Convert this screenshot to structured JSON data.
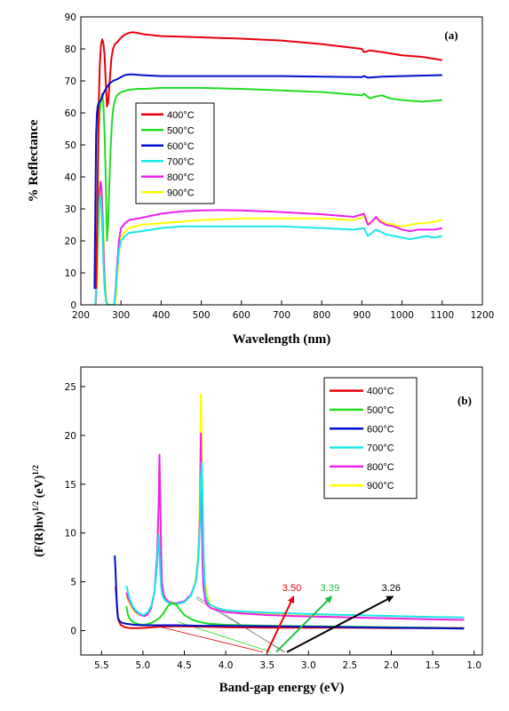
{
  "chart_data": [
    {
      "type": "line",
      "panel_label": "(a)",
      "xlabel": "Wavelength (nm)",
      "ylabel": "% Reflectance",
      "xlim": [
        200,
        1200
      ],
      "ylim": [
        0,
        90
      ],
      "x_ticks": [
        "200",
        "300",
        "400",
        "500",
        "600",
        "700",
        "800",
        "900",
        "1000",
        "1100",
        "1200"
      ],
      "y_ticks": [
        "0",
        "10",
        "20",
        "30",
        "40",
        "50",
        "60",
        "70",
        "80",
        "90"
      ],
      "legend_position": "center-left",
      "series": [
        {
          "name": "400°C",
          "color": "#e8000b",
          "x": [
            238,
            241,
            244,
            247,
            250,
            253,
            256,
            259,
            262,
            265,
            268,
            272,
            276,
            280,
            285,
            290,
            300,
            310,
            320,
            330,
            340,
            360,
            400,
            450,
            500,
            600,
            700,
            800,
            900,
            905,
            920,
            950,
            1000,
            1050,
            1100
          ],
          "y": [
            5,
            30,
            60,
            74,
            81,
            83,
            82,
            78,
            70,
            62,
            63,
            70,
            77,
            80,
            81.5,
            82,
            83.5,
            84.5,
            85,
            85.2,
            85,
            84.5,
            84,
            83.8,
            83.6,
            83.2,
            82.6,
            81.5,
            80,
            79,
            79.5,
            79,
            78,
            77.5,
            76.5
          ]
        },
        {
          "name": "500°C",
          "color": "#22dd22",
          "x": [
            238,
            241,
            244,
            247,
            250,
            253,
            256,
            259,
            262,
            265,
            268,
            271,
            274,
            277,
            280,
            285,
            290,
            300,
            320,
            340,
            360,
            400,
            500,
            600,
            700,
            800,
            900,
            905,
            920,
            930,
            950,
            970,
            1000,
            1050,
            1100
          ],
          "y": [
            5,
            25,
            50,
            60,
            64,
            66,
            63,
            54,
            40,
            20,
            25,
            38,
            48,
            56,
            61,
            64,
            65.5,
            66.5,
            67.2,
            67.5,
            67.5,
            67.8,
            67.8,
            67.5,
            67,
            66.5,
            65.5,
            66,
            64.5,
            65,
            65.5,
            64.5,
            64,
            63.5,
            64
          ]
        },
        {
          "name": "600°C",
          "color": "#0010cc",
          "x": [
            234,
            236,
            238,
            240,
            242,
            244,
            247,
            250,
            253,
            256,
            260,
            265,
            270,
            280,
            290,
            300,
            310,
            320,
            330,
            350,
            400,
            500,
            600,
            700,
            800,
            900,
            905,
            915,
            950,
            1000,
            1100
          ],
          "y": [
            5,
            30,
            53,
            60,
            62,
            63,
            63.5,
            64,
            65,
            66,
            67,
            68,
            69,
            70,
            70.5,
            71.2,
            71.8,
            72,
            72,
            71.8,
            71.5,
            71.5,
            71.5,
            71.5,
            71.3,
            71.2,
            71.5,
            71,
            71.3,
            71.5,
            71.8
          ]
        },
        {
          "name": "700°C",
          "color": "#18e8e8",
          "x": [
            236,
            239,
            242,
            245,
            248,
            250,
            253,
            256,
            259,
            262,
            265,
            270,
            275,
            280,
            283,
            286,
            290,
            295,
            300,
            310,
            320,
            350,
            400,
            450,
            500,
            600,
            700,
            800,
            880,
            905,
            915,
            925,
            935,
            945,
            960,
            980,
            1000,
            1020,
            1040,
            1060,
            1080,
            1100
          ],
          "y": [
            0,
            8,
            20,
            30,
            34,
            33,
            26,
            14,
            5,
            2,
            0,
            0,
            0,
            0,
            0,
            3,
            10,
            17,
            20,
            21.5,
            22.5,
            23,
            24,
            24.5,
            24.5,
            24.5,
            24.5,
            24,
            23.5,
            24,
            21.5,
            22.5,
            23.5,
            23,
            22,
            21.5,
            21,
            20.5,
            21,
            21.5,
            21,
            21.5
          ]
        },
        {
          "name": "800°C",
          "color": "#ee22ee",
          "x": [
            237,
            240,
            243,
            246,
            249,
            251,
            254,
            257,
            260,
            263,
            266,
            270,
            275,
            280,
            283,
            286,
            290,
            295,
            300,
            310,
            320,
            350,
            400,
            450,
            500,
            550,
            600,
            700,
            800,
            880,
            905,
            915,
            925,
            935,
            945,
            960,
            980,
            1000,
            1020,
            1040,
            1060,
            1080,
            1100
          ],
          "y": [
            0,
            10,
            25,
            35,
            38.5,
            37,
            28,
            15,
            5,
            1,
            0,
            0,
            0,
            0,
            0,
            4,
            12,
            20,
            24,
            25.5,
            26.5,
            27.2,
            28.5,
            29.2,
            29.5,
            29.6,
            29.5,
            29,
            28.3,
            27.5,
            28.5,
            25,
            26,
            27.5,
            26,
            25,
            24.5,
            23.5,
            23,
            23.5,
            23.5,
            23.5,
            24
          ]
        },
        {
          "name": "900°C",
          "color": "#ffff00",
          "x": [
            238,
            241,
            244,
            247,
            250,
            253,
            256,
            259,
            262,
            265,
            270,
            275,
            280,
            285,
            288,
            291,
            295,
            300,
            310,
            320,
            350,
            400,
            500,
            600,
            700,
            800,
            880,
            905,
            915,
            925,
            935,
            945,
            960,
            980,
            1000,
            1020,
            1040,
            1060,
            1080,
            1100
          ],
          "y": [
            0,
            8,
            22,
            32,
            36,
            34,
            24,
            12,
            4,
            1,
            0,
            0,
            0,
            0,
            3,
            9,
            16,
            21,
            23,
            24,
            25,
            25.5,
            26.5,
            27,
            27,
            27,
            26.5,
            27.5,
            25.5,
            26,
            27,
            26.5,
            25.5,
            25,
            24.5,
            25,
            25.5,
            25.5,
            26,
            26.5
          ]
        }
      ]
    },
    {
      "type": "line",
      "panel_label": "(b)",
      "xlabel": "Band-gap energy (eV)",
      "ylabel": "(F(R)hν)1/2 (eV)1/2",
      "ylabel_parts": {
        "base": "(F(R)hν)",
        "exp1": "1/2",
        "mid": " (eV)",
        "exp2": "1/2"
      },
      "xlim": [
        5.75,
        0.9
      ],
      "ylim": [
        -2.5,
        27
      ],
      "x_reversed": true,
      "x_ticks": [
        "5.5",
        "5.0",
        "4.5",
        "4.0",
        "3.5",
        "3.0",
        "2.5",
        "2.0",
        "1.5",
        "1.0"
      ],
      "y_ticks": [
        "0",
        "5",
        "10",
        "15",
        "20",
        "25"
      ],
      "legend_position": "top-right",
      "series": [
        {
          "name": "400°C",
          "color": "#e8000b",
          "x": [
            5.33,
            5.3,
            5.27,
            5.22,
            5.15,
            5.05,
            4.95,
            4.8,
            4.6,
            4.3,
            4.0,
            3.5,
            3.0,
            2.5,
            2.0,
            1.5,
            1.12
          ],
          "y": [
            4.5,
            1.2,
            0.6,
            0.35,
            0.25,
            0.25,
            0.3,
            0.4,
            0.45,
            0.4,
            0.35,
            0.3,
            0.3,
            0.3,
            0.25,
            0.25,
            0.25
          ]
        },
        {
          "name": "500°C",
          "color": "#22dd22",
          "x": [
            5.2,
            5.18,
            5.15,
            5.1,
            5.05,
            5.0,
            4.95,
            4.9,
            4.85,
            4.8,
            4.75,
            4.7,
            4.65,
            4.6,
            4.55,
            4.5,
            4.4,
            4.3,
            4.2,
            4.0,
            3.5,
            3.0,
            2.5,
            2.0,
            1.5,
            1.12
          ],
          "y": [
            2.5,
            1.6,
            1.1,
            0.8,
            0.65,
            0.6,
            0.65,
            0.8,
            1.0,
            1.3,
            1.8,
            2.5,
            2.85,
            2.65,
            2.1,
            1.6,
            1.1,
            0.85,
            0.7,
            0.6,
            0.5,
            0.45,
            0.4,
            0.35,
            0.3,
            0.25
          ]
        },
        {
          "name": "600°C",
          "color": "#0010cc",
          "x": [
            5.34,
            5.33,
            5.32,
            5.31,
            5.3,
            5.28,
            5.25,
            5.2,
            5.1,
            5.0,
            4.9,
            4.8,
            4.6,
            4.3,
            4.0,
            3.5,
            3.0,
            2.5,
            2.0,
            1.5,
            1.12
          ],
          "y": [
            7.7,
            6.0,
            3.6,
            2.0,
            1.3,
            0.95,
            0.8,
            0.7,
            0.6,
            0.55,
            0.55,
            0.55,
            0.55,
            0.5,
            0.5,
            0.45,
            0.4,
            0.35,
            0.3,
            0.25,
            0.2
          ]
        },
        {
          "name": "700°C",
          "color": "#18e8e8",
          "x": [
            5.2,
            5.18,
            5.16,
            5.13,
            5.1,
            5.05,
            5.0,
            4.95,
            4.9,
            4.86,
            4.83,
            4.82,
            4.81,
            4.8,
            4.79,
            4.78,
            4.77,
            4.75,
            4.72,
            4.68,
            4.6,
            4.5,
            4.42,
            4.36,
            4.33,
            4.31,
            4.3,
            4.29,
            4.28,
            4.27,
            4.26,
            4.24,
            4.2,
            4.1,
            4.0,
            3.8,
            3.5,
            3.2,
            3.0,
            2.5,
            2.0,
            1.5,
            1.12
          ],
          "y": [
            4.6,
            3.9,
            3.2,
            2.6,
            2.2,
            1.8,
            1.6,
            1.8,
            2.5,
            4.0,
            6.5,
            8.5,
            9.8,
            8.0,
            6.0,
            4.5,
            3.8,
            3.3,
            3.0,
            2.8,
            2.7,
            2.9,
            3.6,
            5.0,
            7.5,
            11.0,
            15.5,
            17.2,
            14.0,
            9.0,
            5.5,
            3.5,
            2.7,
            2.3,
            2.1,
            1.95,
            1.85,
            1.75,
            1.7,
            1.6,
            1.5,
            1.4,
            1.35
          ]
        },
        {
          "name": "800°C",
          "color": "#ee22ee",
          "x": [
            5.2,
            5.18,
            5.15,
            5.12,
            5.08,
            5.03,
            4.98,
            4.94,
            4.9,
            4.86,
            4.83,
            4.81,
            4.8,
            4.79,
            4.78,
            4.77,
            4.75,
            4.72,
            4.68,
            4.6,
            4.5,
            4.42,
            4.36,
            4.33,
            4.31,
            4.3,
            4.29,
            4.28,
            4.27,
            4.25,
            4.22,
            4.18,
            4.1,
            4.0,
            3.8,
            3.5,
            3.2,
            3.0,
            2.5,
            2.0,
            1.5,
            1.12
          ],
          "y": [
            3.9,
            3.3,
            2.8,
            2.3,
            1.9,
            1.6,
            1.5,
            1.7,
            2.3,
            4.0,
            7.5,
            13.0,
            18.0,
            13.0,
            8.0,
            5.0,
            3.7,
            3.2,
            2.9,
            2.8,
            3.0,
            3.7,
            5.0,
            7.5,
            12.0,
            20.2,
            13.0,
            7.0,
            4.5,
            3.2,
            2.6,
            2.3,
            2.1,
            1.9,
            1.75,
            1.6,
            1.5,
            1.45,
            1.35,
            1.25,
            1.15,
            1.1
          ]
        },
        {
          "name": "900°C",
          "color": "#ffff00",
          "x": [
            5.2,
            5.18,
            5.15,
            5.12,
            5.08,
            5.03,
            4.98,
            4.94,
            4.9,
            4.86,
            4.83,
            4.82,
            4.81,
            4.8,
            4.79,
            4.78,
            4.76,
            4.72,
            4.68,
            4.6,
            4.5,
            4.42,
            4.37,
            4.34,
            4.32,
            4.31,
            4.3,
            4.29,
            4.28,
            4.27,
            4.25,
            4.22,
            4.18,
            4.1,
            4.0,
            3.8,
            3.5,
            3.2,
            3.0,
            2.5,
            2.0,
            1.5,
            1.12
          ],
          "y": [
            3.6,
            3.1,
            2.6,
            2.1,
            1.8,
            1.6,
            1.6,
            1.8,
            2.5,
            4.0,
            6.5,
            9.0,
            11.0,
            8.5,
            6.0,
            4.5,
            3.5,
            3.0,
            2.8,
            2.7,
            2.9,
            3.6,
            4.8,
            7.0,
            10.5,
            17.0,
            24.2,
            20.0,
            14.0,
            8.5,
            5.0,
            3.4,
            2.6,
            2.2,
            2.0,
            1.85,
            1.7,
            1.55,
            1.5,
            1.35,
            1.25,
            1.15,
            1.1
          ]
        }
      ],
      "annotations": [
        {
          "text": "3.50",
          "color": "#e8000b",
          "arrow_tip": [
            3.18,
            3.5
          ],
          "arrow_base": [
            3.5,
            -2.2
          ]
        },
        {
          "text": "3.39",
          "color": "#22bb44",
          "arrow_tip": [
            2.72,
            3.5
          ],
          "arrow_base": [
            3.39,
            -2.2
          ]
        },
        {
          "text": "3.26",
          "color": "#000000",
          "arrow_tip": [
            1.98,
            3.5
          ],
          "arrow_base": [
            3.26,
            -2.2
          ]
        }
      ],
      "tangent_lines": [
        {
          "color": "#e8000b",
          "from": [
            4.9,
            0.6
          ],
          "to": [
            3.55,
            -2.2
          ]
        },
        {
          "color": "#22dd22",
          "from": [
            4.58,
            0.9
          ],
          "to": [
            3.45,
            -2.2
          ]
        },
        {
          "color": "#888888",
          "from": [
            4.36,
            3.3
          ],
          "to": [
            3.28,
            -2.2
          ]
        },
        {
          "color": "#888888",
          "from": [
            4.35,
            3.5
          ],
          "to": [
            3.3,
            -2.2
          ]
        }
      ]
    }
  ]
}
